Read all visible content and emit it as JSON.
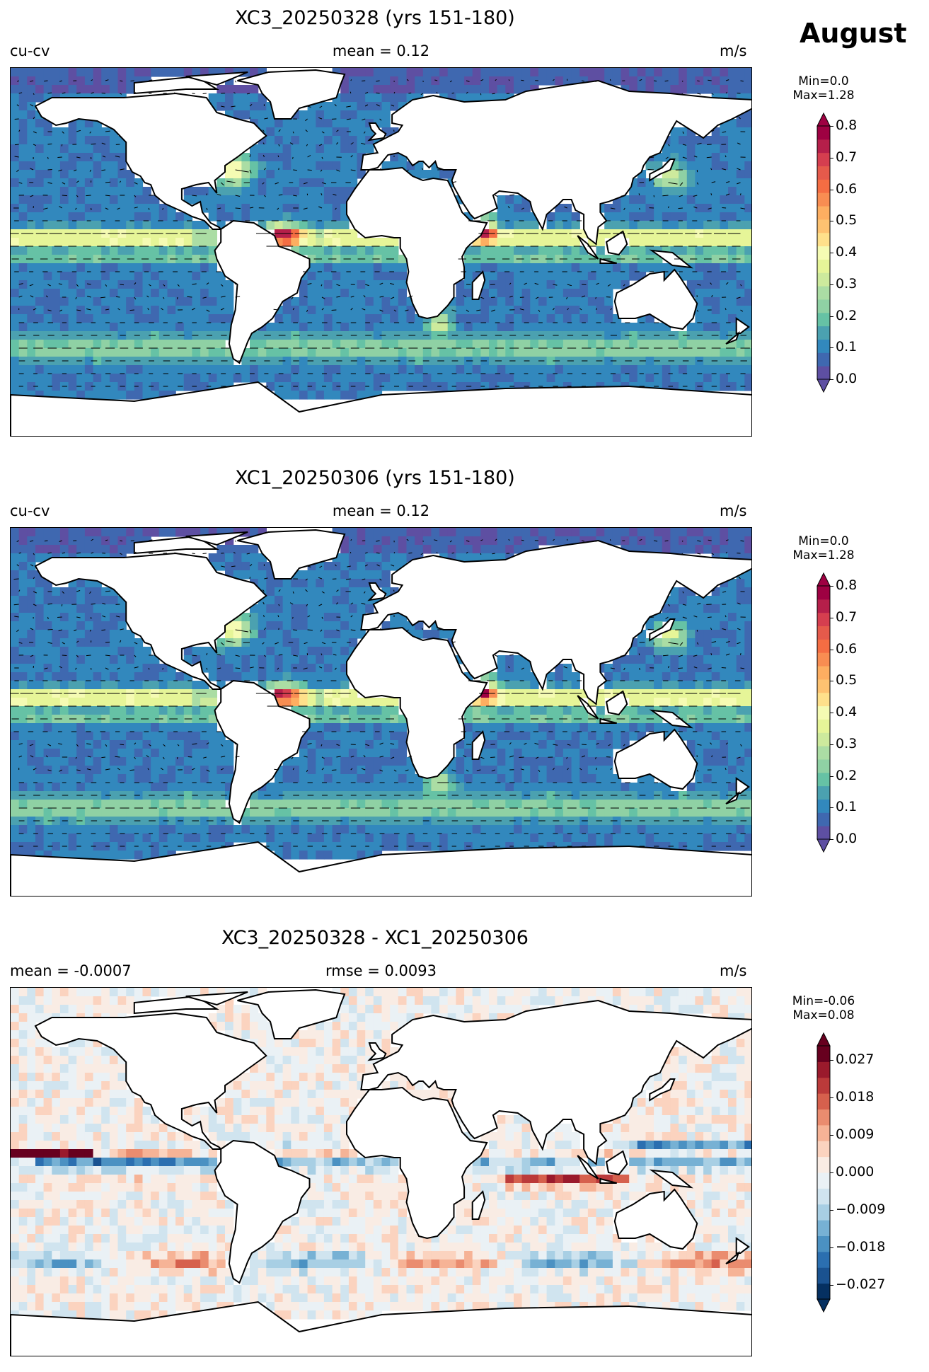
{
  "figure": {
    "month": "August"
  },
  "panels": [
    {
      "title": "XC3_20250328 (yrs 151-180)",
      "left_label": "cu-cv",
      "center_label": "mean = 0.12",
      "right_label": "m/s",
      "colorbar": {
        "min_label": "Min=0.0",
        "max_label": "Max=1.28",
        "ticks": [
          "0.8",
          "0.7",
          "0.6",
          "0.5",
          "0.4",
          "0.3",
          "0.2",
          "0.1",
          "0.0"
        ],
        "colors": [
          "#5e4fa2",
          "#3f68b0",
          "#3288bd",
          "#4ba1b0",
          "#66c2a5",
          "#8fd1a4",
          "#abdda4",
          "#cdea9d",
          "#e6f598",
          "#f5fbb3",
          "#fee08b",
          "#fdc271",
          "#fdae61",
          "#f88d52",
          "#f46d43",
          "#e55a4b",
          "#d53e4f",
          "#b51f4a",
          "#9e0142"
        ],
        "scale": "sequential"
      },
      "mean_value": 0.12
    },
    {
      "title": "XC1_20250306 (yrs 151-180)",
      "left_label": "cu-cv",
      "center_label": "mean = 0.12",
      "right_label": "m/s",
      "colorbar": {
        "min_label": "Min=0.0",
        "max_label": "Max=1.28",
        "ticks": [
          "0.8",
          "0.7",
          "0.6",
          "0.5",
          "0.4",
          "0.3",
          "0.2",
          "0.1",
          "0.0"
        ],
        "colors": [
          "#5e4fa2",
          "#3f68b0",
          "#3288bd",
          "#4ba1b0",
          "#66c2a5",
          "#8fd1a4",
          "#abdda4",
          "#cdea9d",
          "#e6f598",
          "#f5fbb3",
          "#fee08b",
          "#fdc271",
          "#fdae61",
          "#f88d52",
          "#f46d43",
          "#e55a4b",
          "#d53e4f",
          "#b51f4a",
          "#9e0142"
        ],
        "scale": "sequential"
      },
      "mean_value": 0.12
    },
    {
      "title": "XC3_20250328 - XC1_20250306",
      "left_label": "mean = -0.0007",
      "center_label": "rmse = 0.0093",
      "right_label": "m/s",
      "colorbar": {
        "min_label": "Min=-0.06",
        "max_label": "Max=0.08",
        "ticks": [
          "0.027",
          "0.018",
          "0.009",
          "0.000",
          "−0.009",
          "−0.018",
          "−0.027"
        ],
        "colors": [
          "#053061",
          "#1a5290",
          "#2b6fb0",
          "#4b91c2",
          "#77b1d4",
          "#a8cfe4",
          "#d0e4ef",
          "#eaf1f5",
          "#f9ece4",
          "#fbd3bf",
          "#f6b396",
          "#ea8c6f",
          "#d6604d",
          "#bb3a3a",
          "#9a1a2c",
          "#67001f"
        ],
        "scale": "diverging"
      },
      "mean_value": -0.0007,
      "rmse_value": 0.0093
    }
  ]
}
